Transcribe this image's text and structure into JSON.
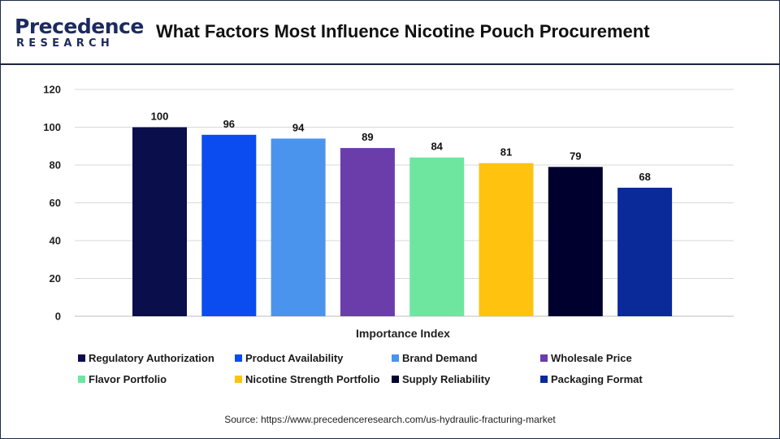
{
  "header": {
    "logo_top": "Precedence",
    "logo_bottom": "RESEARCH",
    "title": "What Factors Most Influence Nicotine Pouch Procurement"
  },
  "colors": {
    "brand": "#1c2a5e",
    "grid": "#d9d9d9"
  },
  "chart_data": {
    "type": "bar",
    "title": "What Factors Most Influence Nicotine Pouch Procurement",
    "xlabel": "Importance Index",
    "ylabel": "",
    "ylim": [
      0,
      120
    ],
    "yticks": [
      0,
      20,
      40,
      60,
      80,
      100,
      120
    ],
    "grid": true,
    "legend_placement": "bottom",
    "categories": [
      "Regulatory Authorization",
      "Product Availability",
      "Brand Demand",
      "Wholesale Price",
      "Flavor Portfolio",
      "Nicotine Strength Portfolio",
      "Supply Reliability",
      "Packaging Format"
    ],
    "values": [
      100,
      96,
      94,
      89,
      84,
      81,
      79,
      68
    ],
    "bar_colors": [
      "#0a0e4a",
      "#0a4cf0",
      "#4a94ee",
      "#6a3dab",
      "#6ee6a0",
      "#ffc20e",
      "#00002e",
      "#0a2a9a"
    ]
  },
  "source": "Source: https://www.precedenceresearch.com/us-hydraulic-fracturing-market"
}
